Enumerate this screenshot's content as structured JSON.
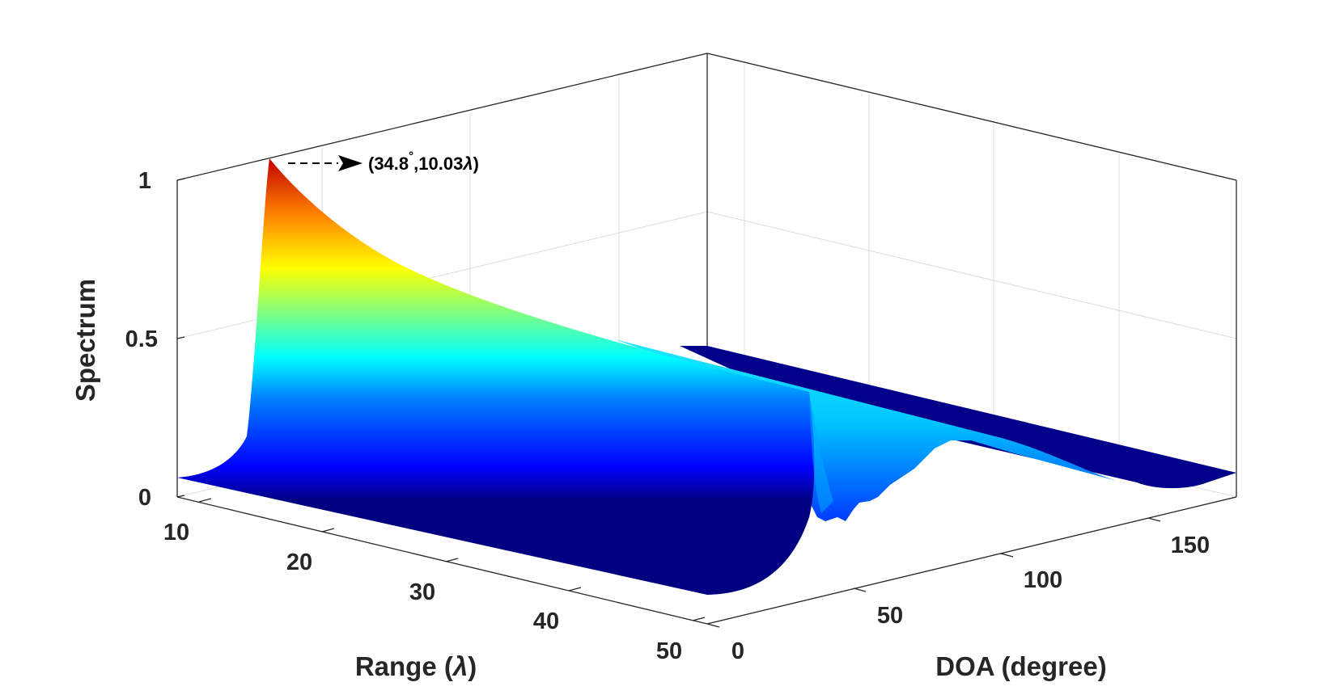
{
  "chart_data": {
    "type": "surface",
    "zlabel": "Spectrum",
    "xlabel": "Range (λ)",
    "ylabel": "DOA (degree)",
    "x_label_text": "Range (",
    "x_label_lambda": "λ",
    "x_label_close": ")",
    "range_ticks": [
      "10",
      "20",
      "30",
      "40",
      "50"
    ],
    "range_tick_values": [
      10,
      20,
      30,
      40,
      50
    ],
    "doa_ticks": [
      "0",
      "50",
      "100",
      "150"
    ],
    "doa_tick_values": [
      0,
      50,
      100,
      150
    ],
    "spectrum_ticks": [
      "0",
      "0.5",
      "1"
    ],
    "spectrum_tick_values": [
      0,
      0.5,
      1
    ],
    "range_lim": [
      7,
      50
    ],
    "doa_lim": [
      0,
      180
    ],
    "spectrum_lim": [
      0,
      1
    ],
    "peak": {
      "doa": 34.8,
      "range": 10.03,
      "value": 1.0
    },
    "annotation": {
      "doa_text": "(34.8",
      "degree_mark": "°",
      "range_text": ",10.03",
      "lambda": "λ",
      "close": ")"
    },
    "colormap": "jet"
  }
}
